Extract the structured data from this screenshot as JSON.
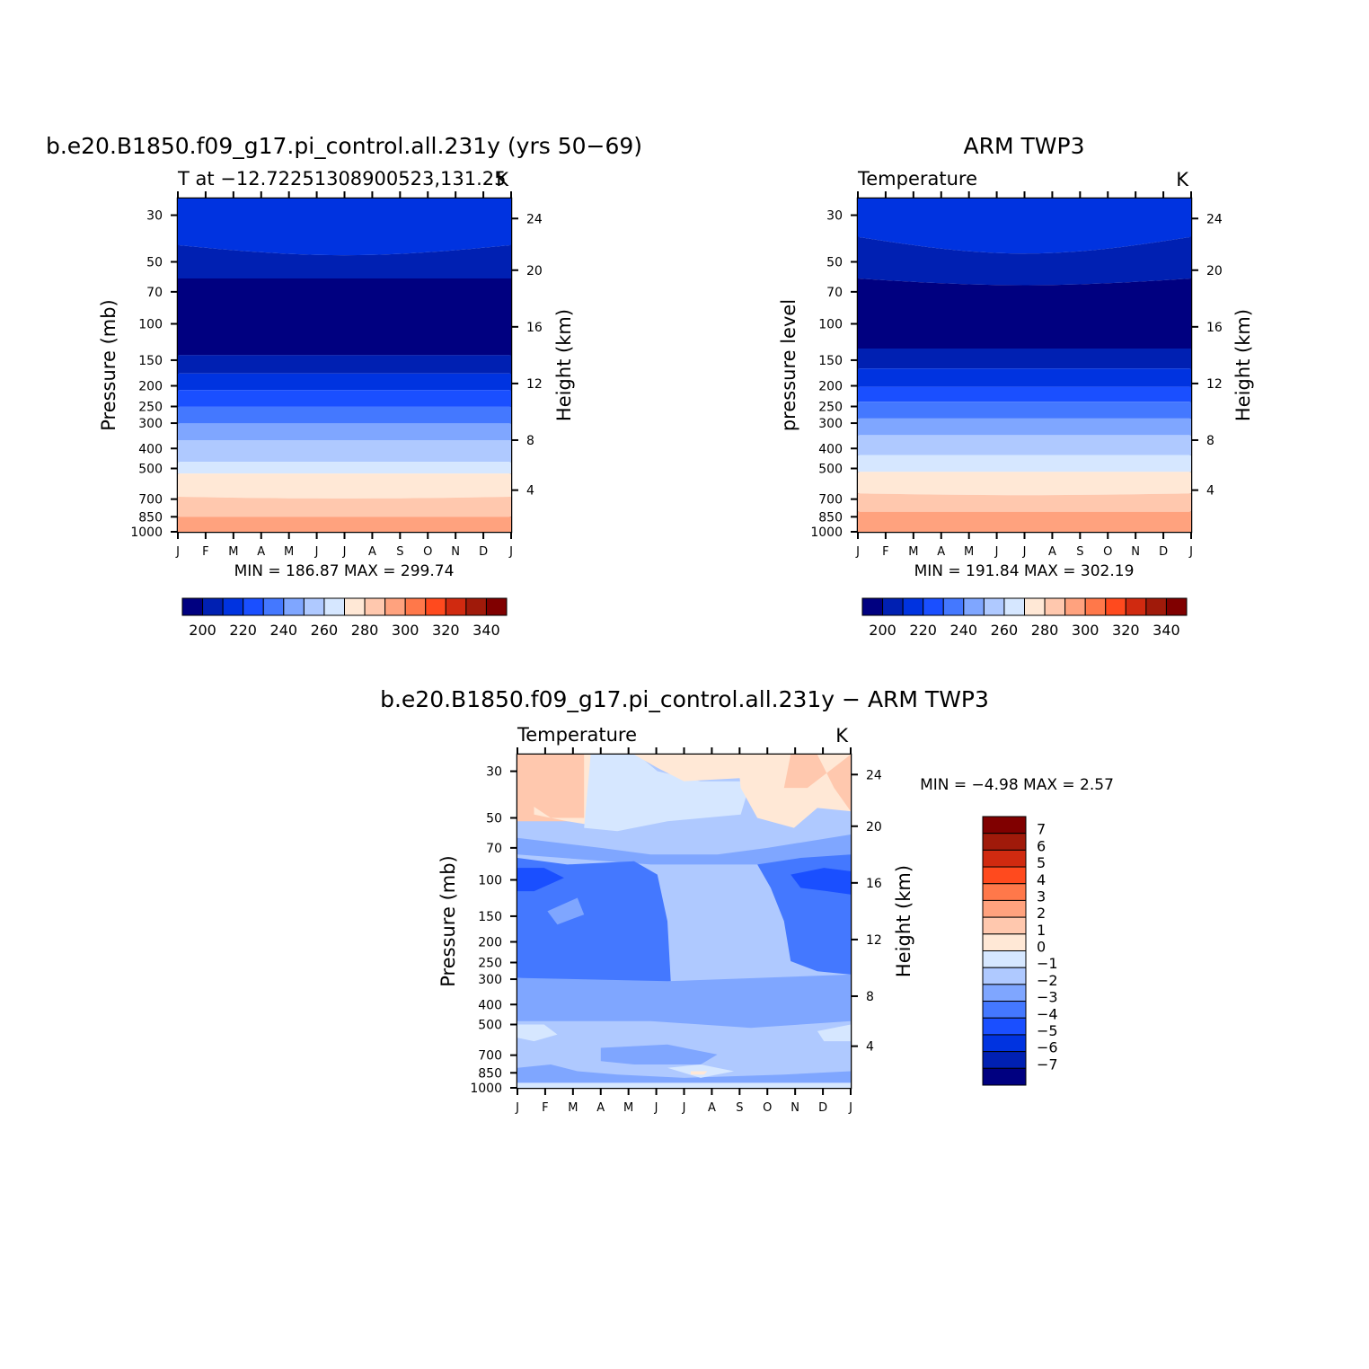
{
  "colors": {
    "abs_levels": [
      "#000080",
      "#0020B2",
      "#0033E0",
      "#1A4FFF",
      "#4478FF",
      "#7FA6FF",
      "#AFC9FF",
      "#D6E7FF",
      "#FFE8D6",
      "#FFC8AE",
      "#FFA27E",
      "#FF784A",
      "#FF4A1E",
      "#D02A10",
      "#A01A0A",
      "#800000"
    ],
    "diff_levels": [
      "#000080",
      "#0020B2",
      "#0033E0",
      "#1A4FFF",
      "#4478FF",
      "#7FA6FF",
      "#AFC9FF",
      "#D6E7FF",
      "#FFE8D6",
      "#FFC8AE",
      "#FFA27E",
      "#FF784A",
      "#FF4A1E",
      "#D02A10",
      "#A01A0A",
      "#800000"
    ]
  },
  "chart_data": [
    {
      "type": "heatmap",
      "title": "b.e20.B1850.f09_g17.pi_control.all.231y (yrs 50−69)",
      "subtitle_left": "T at −12.72251308900523,131.25",
      "subtitle_right": "K",
      "ylabel": "Pressure  (mb)",
      "y2label": "Height  (km)",
      "x_ticks": [
        "J",
        "F",
        "M",
        "A",
        "M",
        "J",
        "J",
        "A",
        "S",
        "O",
        "N",
        "D",
        "J"
      ],
      "y_ticks": [
        "30",
        "50",
        "70",
        "100",
        "150",
        "200",
        "250",
        "300",
        "400",
        "500",
        "700",
        "850",
        "1000"
      ],
      "y2_ticks": [
        "24",
        "20",
        "16",
        "12",
        "8",
        "4"
      ],
      "stats": "MIN =  186.87  MAX =  299.74",
      "colorbar_labels": [
        "200",
        "220",
        "240",
        "260",
        "280",
        "300",
        "320",
        "340"
      ],
      "min": 186.87,
      "max": 299.74
    },
    {
      "type": "heatmap",
      "title": "ARM  TWP3",
      "subtitle_left": "Temperature",
      "subtitle_right": "K",
      "ylabel": "pressure  level",
      "y2label": "Height  (km)",
      "x_ticks": [
        "J",
        "F",
        "M",
        "A",
        "M",
        "J",
        "J",
        "A",
        "S",
        "O",
        "N",
        "D",
        "J"
      ],
      "y_ticks": [
        "30",
        "50",
        "70",
        "100",
        "150",
        "200",
        "250",
        "300",
        "400",
        "500",
        "700",
        "850",
        "1000"
      ],
      "y2_ticks": [
        "24",
        "20",
        "16",
        "12",
        "8",
        "4"
      ],
      "stats": "MIN =  191.84  MAX =  302.19",
      "colorbar_labels": [
        "200",
        "220",
        "240",
        "260",
        "280",
        "300",
        "320",
        "340"
      ],
      "min": 191.84,
      "max": 302.19
    },
    {
      "type": "heatmap",
      "title": "b.e20.B1850.f09_g17.pi_control.all.231y  −  ARM  TWP3",
      "subtitle_left": "Temperature",
      "subtitle_right": "K",
      "ylabel": "Pressure  (mb)",
      "y2label": "Height  (km)",
      "x_ticks": [
        "J",
        "F",
        "M",
        "A",
        "M",
        "J",
        "J",
        "A",
        "S",
        "O",
        "N",
        "D",
        "J"
      ],
      "y_ticks": [
        "30",
        "50",
        "70",
        "100",
        "150",
        "200",
        "250",
        "300",
        "400",
        "500",
        "700",
        "850",
        "1000"
      ],
      "y2_ticks": [
        "24",
        "20",
        "16",
        "12",
        "8",
        "4"
      ],
      "stats": "MIN =    −4.98  MAX =    2.57",
      "colorbar_labels": [
        "7",
        "6",
        "5",
        "4",
        "3",
        "2",
        "1",
        "0",
        "−1",
        "−2",
        "−3",
        "−4",
        "−5",
        "−6",
        "−7"
      ],
      "min": -4.98,
      "max": 2.57
    }
  ]
}
